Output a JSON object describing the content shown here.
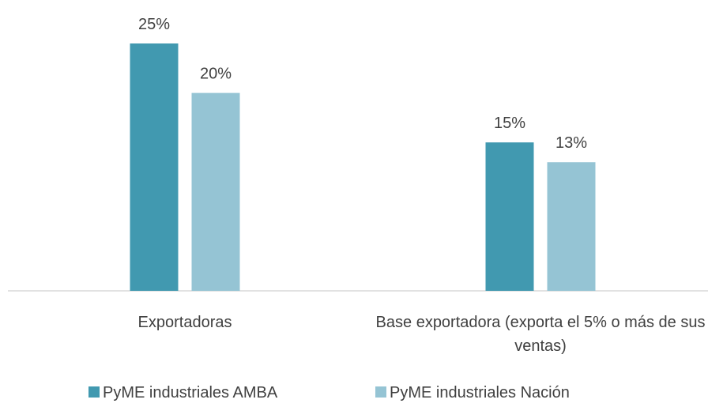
{
  "chart_data": {
    "type": "bar",
    "categories": [
      "Exportadoras",
      "Base exportadora (exporta el 5% o más de sus ventas)"
    ],
    "series": [
      {
        "name": "PyME industriales AMBA",
        "color": "#4199b0",
        "values": [
          25,
          15
        ],
        "value_labels": [
          "25%",
          "15%"
        ]
      },
      {
        "name": "PyME industriales Nación",
        "color": "#95c4d4",
        "values": [
          20,
          13
        ],
        "value_labels": [
          "20%",
          "13%"
        ]
      }
    ]
  }
}
